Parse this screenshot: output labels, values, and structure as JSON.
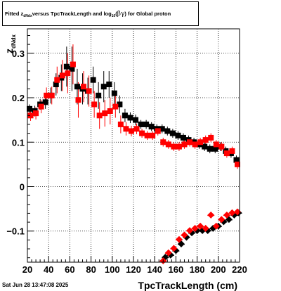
{
  "title": {
    "p1": "Fitted  z",
    "sub1": "dNdx",
    "p2": "  versus TpcTrackLength and log",
    "sub2": "10",
    "p3": " (",
    "beta": "β",
    "gamma": "γ",
    "p4": ") for Global proton"
  },
  "timestamp": "Sat Jun 28 13:47:08 2025",
  "colors": {
    "series_black": "#000000",
    "series_red": "#ff0000",
    "grid": "#000000",
    "frame": "#000000"
  },
  "chart_data": {
    "type": "scatter",
    "xlabel": "TpcTrackLength (cm)",
    "ylabel_main": "z",
    "ylabel_sub": "dNdx",
    "xlim": [
      20,
      220
    ],
    "ylim": [
      -0.17,
      0.355
    ],
    "xticks": [
      20,
      40,
      60,
      80,
      100,
      120,
      140,
      160,
      180,
      200,
      220
    ],
    "yticks": [
      -0.1,
      0,
      0.1,
      0.2,
      0.3
    ],
    "ytick_labels": [
      "−0.1",
      "0",
      "0.1",
      "0.2",
      "0.3"
    ],
    "grid": true,
    "series": [
      {
        "color": "#000000",
        "marker": "square",
        "x": [
          22,
          27,
          32,
          37,
          42,
          47,
          52,
          57,
          62,
          67,
          72,
          77,
          82,
          87,
          92,
          97,
          102,
          107,
          112,
          117,
          122,
          127,
          132,
          137,
          142,
          147,
          152,
          157,
          162,
          167,
          172,
          177,
          182,
          187,
          192,
          197,
          202,
          207,
          212,
          217
        ],
        "y": [
          0.175,
          0.17,
          0.185,
          0.19,
          0.205,
          0.23,
          0.245,
          0.27,
          0.265,
          0.225,
          0.22,
          0.215,
          0.24,
          0.205,
          0.225,
          0.23,
          0.21,
          0.185,
          0.16,
          0.155,
          0.15,
          0.14,
          0.14,
          0.135,
          0.13,
          0.13,
          0.125,
          0.12,
          0.115,
          0.11,
          0.105,
          0.1,
          0.095,
          0.09,
          0.085,
          0.085,
          0.09,
          0.08,
          0.075,
          0.06
        ],
        "err": [
          0.01,
          0.012,
          0.012,
          0.015,
          0.018,
          0.025,
          0.03,
          0.045,
          0.05,
          0.04,
          0.035,
          0.03,
          0.03,
          0.03,
          0.035,
          0.03,
          0.025,
          0.02,
          0.015,
          0.012,
          0.012,
          0.01,
          0.01,
          0.01,
          0.01,
          0.01,
          0.01,
          0.01,
          0.01,
          0.01,
          0.01,
          0.01,
          0.01,
          0.01,
          0.01,
          0.01,
          0.01,
          0.01,
          0.01,
          0.01
        ],
        "x2": [
          150,
          155,
          160,
          165,
          170,
          175,
          180,
          185,
          190,
          195,
          200,
          205,
          210,
          215,
          219
        ],
        "y2": [
          -0.16,
          -0.155,
          -0.145,
          -0.13,
          -0.115,
          -0.105,
          -0.1,
          -0.1,
          -0.1,
          -0.095,
          -0.09,
          -0.08,
          -0.075,
          -0.065,
          -0.06
        ]
      },
      {
        "color": "#ff0000",
        "marker": "square",
        "x": [
          23,
          28,
          33,
          38,
          43,
          48,
          53,
          58,
          63,
          68,
          73,
          78,
          83,
          88,
          93,
          98,
          103,
          108,
          113,
          118,
          123,
          128,
          133,
          138,
          143,
          148,
          153,
          158,
          163,
          168,
          173,
          178,
          183,
          188,
          193,
          198,
          203,
          208,
          213,
          218
        ],
        "y": [
          0.16,
          0.165,
          0.18,
          0.205,
          0.205,
          0.24,
          0.25,
          0.255,
          0.275,
          0.195,
          0.225,
          0.215,
          0.185,
          0.16,
          0.165,
          0.17,
          0.18,
          0.14,
          0.13,
          0.125,
          0.13,
          0.12,
          0.115,
          0.115,
          0.125,
          0.1,
          0.095,
          0.09,
          0.09,
          0.095,
          0.1,
          0.095,
          0.1,
          0.105,
          0.11,
          0.095,
          0.09,
          0.075,
          0.08,
          0.05
        ],
        "err": [
          0.012,
          0.014,
          0.015,
          0.018,
          0.02,
          0.03,
          0.035,
          0.045,
          0.045,
          0.04,
          0.035,
          0.035,
          0.03,
          0.03,
          0.03,
          0.03,
          0.025,
          0.02,
          0.015,
          0.012,
          0.012,
          0.01,
          0.01,
          0.01,
          0.01,
          0.01,
          0.01,
          0.01,
          0.01,
          0.01,
          0.01,
          0.01,
          0.01,
          0.01,
          0.01,
          0.01,
          0.01,
          0.01,
          0.01,
          0.01
        ],
        "x2": [
          148,
          153,
          158,
          163,
          168,
          173,
          178,
          183,
          188,
          193,
          198,
          203,
          208,
          213,
          218
        ],
        "y2": [
          -0.168,
          -0.15,
          -0.14,
          -0.12,
          -0.11,
          -0.1,
          -0.095,
          -0.09,
          -0.095,
          -0.065,
          -0.09,
          -0.075,
          -0.065,
          -0.06,
          -0.058
        ]
      }
    ]
  }
}
